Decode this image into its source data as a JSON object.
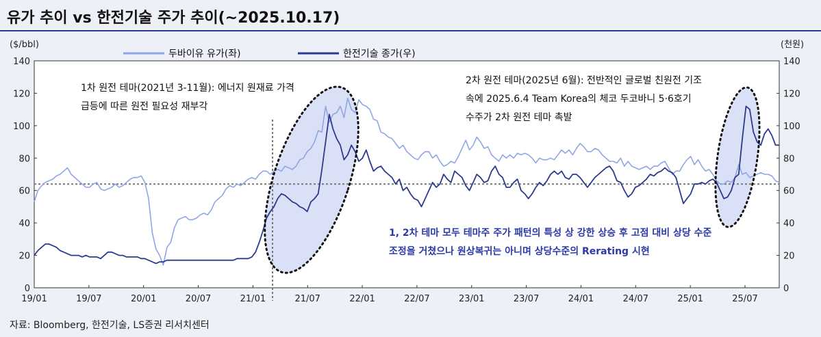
{
  "title": "유가 추이 vs 한전기술 주가 추이(~2025.10.17)",
  "source": "자료: Bloomberg, 한전기술, LS증권 리서치센터",
  "chart_data": {
    "type": "line",
    "left_axis": {
      "unit": "($/bbl)",
      "ylim": [
        0,
        140
      ],
      "ticks": [
        "0",
        "20",
        "40",
        "60",
        "80",
        "100",
        "120",
        "140"
      ]
    },
    "right_axis": {
      "unit": "(천원)",
      "ylim": [
        0,
        140
      ],
      "ticks": [
        "0",
        "20",
        "40",
        "60",
        "80",
        "100",
        "120",
        "140"
      ]
    },
    "x_ticks": [
      "19/01",
      "19/07",
      "20/01",
      "20/07",
      "21/01",
      "21/07",
      "22/01",
      "22/07",
      "23/01",
      "23/07",
      "24/01",
      "24/07",
      "25/01",
      "25/07"
    ],
    "reference_line": 64,
    "series": [
      {
        "name": "두바이유 유가(좌)",
        "axis": "left",
        "color": "#8fa6e4",
        "x": [
          0,
          1,
          2,
          3,
          4,
          5,
          6,
          7,
          8,
          9,
          10,
          11,
          12,
          13,
          14,
          15,
          16,
          17,
          18,
          19,
          20,
          21,
          22,
          23,
          24,
          25,
          26,
          27,
          28,
          29,
          30,
          31,
          32,
          33,
          34,
          35,
          36,
          37,
          38,
          39,
          40,
          41,
          42,
          43,
          44,
          45,
          46,
          47,
          48,
          49,
          50,
          51,
          52,
          53,
          54,
          55,
          56,
          57,
          58,
          59,
          60,
          61,
          62,
          63,
          64,
          65,
          66,
          67,
          68,
          69,
          70,
          71,
          72,
          73,
          74,
          75,
          76,
          77,
          78,
          79,
          80,
          81,
          82,
          83,
          84,
          85,
          86,
          87,
          88,
          89,
          90,
          91,
          92,
          93,
          94,
          95,
          96,
          97,
          98,
          99,
          100,
          101,
          102,
          103,
          104,
          105,
          106,
          107,
          108,
          109,
          110,
          111,
          112,
          113,
          114,
          115,
          116,
          117,
          118,
          119,
          120,
          121,
          122,
          123,
          124,
          125,
          126,
          127,
          128,
          129,
          130,
          131,
          132,
          133,
          134,
          135,
          136,
          137,
          138,
          139,
          140,
          141,
          142,
          143,
          144,
          145,
          146,
          147,
          148,
          149,
          150,
          151,
          152,
          153,
          154,
          155,
          156,
          157,
          158,
          159,
          160,
          161,
          162,
          163,
          164,
          165,
          166,
          167,
          168,
          169,
          170,
          171,
          172,
          173,
          174,
          175,
          176,
          177,
          178,
          179,
          180,
          181,
          182,
          183,
          184,
          185,
          186,
          187,
          188,
          189,
          190,
          191,
          192,
          193,
          194,
          195,
          196,
          197,
          198,
          199,
          200,
          201,
          202
        ],
        "values": [
          53,
          60,
          63,
          65,
          66,
          67,
          69,
          70,
          72,
          74,
          70,
          68,
          66,
          64,
          62,
          62,
          64,
          65,
          61,
          60,
          61,
          62,
          64,
          62,
          63,
          65,
          67,
          68,
          68,
          69,
          65,
          55,
          34,
          24,
          20,
          14,
          25,
          28,
          37,
          42,
          43,
          44,
          42,
          42,
          43,
          45,
          46,
          45,
          48,
          53,
          55,
          57,
          61,
          63,
          62,
          64,
          63,
          65,
          67,
          68,
          67,
          70,
          72,
          72,
          70,
          72,
          73,
          72,
          75,
          74,
          73,
          75,
          79,
          80,
          84,
          86,
          90,
          97,
          96,
          112,
          102,
          107,
          108,
          112,
          105,
          117,
          110,
          108,
          116,
          113,
          112,
          110,
          104,
          103,
          96,
          95,
          93,
          92,
          89,
          86,
          88,
          84,
          82,
          80,
          79,
          82,
          84,
          84,
          80,
          82,
          78,
          75,
          76,
          78,
          77,
          81,
          86,
          91,
          85,
          88,
          93,
          90,
          86,
          87,
          82,
          80,
          78,
          82,
          80,
          82,
          80,
          83,
          82,
          83,
          82,
          80,
          77,
          80,
          79,
          79,
          80,
          79,
          82,
          85,
          83,
          85,
          82,
          86,
          89,
          87,
          84,
          84,
          86,
          85,
          82,
          80,
          78,
          78,
          77,
          80,
          75,
          78,
          75,
          74,
          73,
          74,
          75,
          73,
          75,
          75,
          77,
          78,
          74,
          70,
          72,
          72,
          76,
          79,
          81,
          76,
          79,
          75,
          72,
          73,
          70,
          66,
          64,
          64,
          66,
          65,
          68,
          76,
          70,
          71,
          68,
          69,
          70,
          71,
          70,
          70,
          69,
          66,
          65
        ]
      },
      {
        "name": "한전기술 종가(우)",
        "axis": "right",
        "color": "#2b3a8e",
        "x": [
          0,
          1,
          2,
          3,
          4,
          5,
          6,
          7,
          8,
          9,
          10,
          11,
          12,
          13,
          14,
          15,
          16,
          17,
          18,
          19,
          20,
          21,
          22,
          23,
          24,
          25,
          26,
          27,
          28,
          29,
          30,
          31,
          32,
          33,
          34,
          35,
          36,
          37,
          38,
          39,
          40,
          41,
          42,
          43,
          44,
          45,
          46,
          47,
          48,
          49,
          50,
          51,
          52,
          53,
          54,
          55,
          56,
          57,
          58,
          59,
          60,
          61,
          62,
          63,
          64,
          65,
          66,
          67,
          68,
          69,
          70,
          71,
          72,
          73,
          74,
          75,
          76,
          77,
          78,
          79,
          80,
          81,
          82,
          83,
          84,
          85,
          86,
          87,
          88,
          89,
          90,
          91,
          92,
          93,
          94,
          95,
          96,
          97,
          98,
          99,
          100,
          101,
          102,
          103,
          104,
          105,
          106,
          107,
          108,
          109,
          110,
          111,
          112,
          113,
          114,
          115,
          116,
          117,
          118,
          119,
          120,
          121,
          122,
          123,
          124,
          125,
          126,
          127,
          128,
          129,
          130,
          131,
          132,
          133,
          134,
          135,
          136,
          137,
          138,
          139,
          140,
          141,
          142,
          143,
          144,
          145,
          146,
          147,
          148,
          149,
          150,
          151,
          152,
          153,
          154,
          155,
          156,
          157,
          158,
          159,
          160,
          161,
          162,
          163,
          164,
          165,
          166,
          167,
          168,
          169,
          170,
          171,
          172,
          173,
          174,
          175,
          176,
          177,
          178,
          179,
          180,
          181,
          182,
          183,
          184,
          185,
          186,
          187,
          188,
          189,
          190,
          191,
          192,
          193,
          194,
          195,
          196,
          197,
          198,
          199,
          200,
          201,
          202
        ],
        "values": [
          20,
          23,
          25,
          27,
          27,
          26,
          25,
          23,
          22,
          21,
          20,
          20,
          20,
          19,
          20,
          19,
          19,
          19,
          18,
          20,
          22,
          22,
          21,
          20,
          20,
          19,
          19,
          19,
          19,
          18,
          18,
          17,
          16,
          15,
          16,
          16,
          17,
          17,
          17,
          17,
          17,
          17,
          17,
          17,
          17,
          17,
          17,
          17,
          17,
          17,
          17,
          17,
          17,
          17,
          17,
          18,
          18,
          18,
          18,
          19,
          22,
          28,
          35,
          43,
          47,
          50,
          55,
          58,
          57,
          55,
          53,
          52,
          50,
          49,
          47,
          53,
          55,
          58,
          73,
          90,
          107,
          98,
          92,
          88,
          79,
          82,
          88,
          84,
          78,
          80,
          85,
          78,
          72,
          74,
          75,
          72,
          70,
          68,
          64,
          67,
          60,
          62,
          58,
          55,
          54,
          50,
          55,
          60,
          65,
          62,
          64,
          70,
          67,
          65,
          72,
          70,
          68,
          63,
          60,
          65,
          70,
          68,
          65,
          66,
          72,
          75,
          70,
          68,
          62,
          62,
          65,
          67,
          60,
          58,
          55,
          58,
          62,
          65,
          63,
          66,
          70,
          72,
          70,
          72,
          68,
          67,
          70,
          70,
          68,
          65,
          62,
          65,
          68,
          70,
          72,
          74,
          75,
          72,
          66,
          65,
          60,
          56,
          58,
          62,
          63,
          65,
          67,
          70,
          69,
          71,
          72,
          74,
          72,
          71,
          68,
          60,
          52,
          55,
          58,
          64,
          64,
          65,
          64,
          66,
          67,
          65,
          60,
          55,
          56,
          60,
          68,
          70,
          92,
          112,
          110,
          96,
          90,
          88,
          95,
          98,
          94,
          88,
          88
        ]
      }
    ],
    "annotations": {
      "first_theme_line1": "1차 원전 테마(2021년 3-11월): 에너지 원재료 가격",
      "first_theme_line2": "급등에 따른 원전 필요성 재부각",
      "second_theme_line1": "2차 원전 테마(2025년 6월): 전반적인 글로벌 친원전 기조",
      "second_theme_line2": "속에 2025.6.4 Team Korea의 체코 두코바니 5·6호기",
      "second_theme_line3": "수주가 2차 원전 테마 촉발",
      "conclusion_line1": "1, 2차 테마 모두 테마주 주가 패턴의 특성 상 강한 상승 후 고점 대비 상당 수준",
      "conclusion_line2": "조정을 거쳤으나 원상복귀는 아니며 상당수준의 Rerating 시현"
    }
  }
}
